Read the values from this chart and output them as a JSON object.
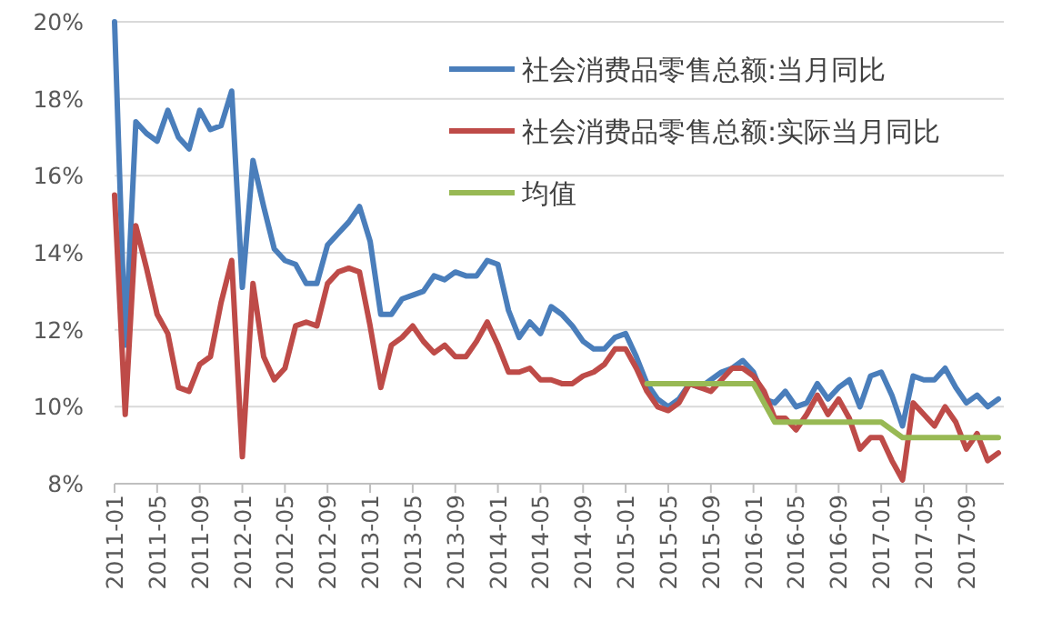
{
  "chart_data": {
    "type": "line",
    "categories": [
      "2011-01",
      null,
      null,
      null,
      "2011-05",
      null,
      null,
      null,
      "2011-09",
      null,
      null,
      null,
      "2012-01",
      null,
      null,
      null,
      "2012-05",
      null,
      null,
      null,
      "2012-09",
      null,
      null,
      null,
      "2013-01",
      null,
      null,
      null,
      "2013-05",
      null,
      null,
      null,
      "2013-09",
      null,
      null,
      null,
      "2014-01",
      null,
      null,
      null,
      "2014-05",
      null,
      null,
      null,
      "2014-09",
      null,
      null,
      null,
      "2015-01",
      null,
      null,
      null,
      "2015-05",
      null,
      null,
      null,
      "2015-09",
      null,
      null,
      null,
      "2016-01",
      null,
      null,
      null,
      "2016-05",
      null,
      null,
      null,
      "2016-09",
      null,
      null,
      null,
      "2017-01",
      null,
      null,
      null,
      "2017-05",
      null,
      null,
      null,
      "2017-09",
      null,
      null,
      null
    ],
    "series": [
      {
        "name": "社会消费品零售总额:当月同比",
        "color": "#4a7ebb",
        "values": [
          20.0,
          11.6,
          17.4,
          17.1,
          16.9,
          17.7,
          17.0,
          16.7,
          17.7,
          17.2,
          17.3,
          18.2,
          13.1,
          16.4,
          15.2,
          14.1,
          13.8,
          13.7,
          13.2,
          13.2,
          14.2,
          14.5,
          14.8,
          15.2,
          14.3,
          12.4,
          12.4,
          12.8,
          12.9,
          13.0,
          13.4,
          13.3,
          13.5,
          13.4,
          13.4,
          13.8,
          13.7,
          12.5,
          11.8,
          12.2,
          11.9,
          12.6,
          12.4,
          12.1,
          11.7,
          11.5,
          11.5,
          11.8,
          11.9,
          11.3,
          10.6,
          10.2,
          10.0,
          10.2,
          10.6,
          10.5,
          10.7,
          10.9,
          11.0,
          11.2,
          10.9,
          10.2,
          10.1,
          10.4,
          10.0,
          10.1,
          10.6,
          10.2,
          10.5,
          10.7,
          10.0,
          10.8,
          10.9,
          10.3,
          9.5,
          10.8,
          10.7,
          10.7,
          11.0,
          10.5,
          10.1,
          10.3,
          10.0,
          10.2
        ]
      },
      {
        "name": "社会消费品零售总额:实际当月同比",
        "color": "#be4b48",
        "values": [
          15.5,
          9.8,
          14.7,
          13.6,
          12.4,
          11.9,
          10.5,
          10.4,
          11.1,
          11.3,
          12.7,
          13.8,
          8.7,
          13.2,
          11.3,
          10.7,
          11.0,
          12.1,
          12.2,
          12.1,
          13.2,
          13.5,
          13.6,
          13.5,
          12.1,
          10.5,
          11.6,
          11.8,
          12.1,
          11.7,
          11.4,
          11.6,
          11.3,
          11.3,
          11.7,
          12.2,
          11.6,
          10.9,
          10.9,
          11.0,
          10.7,
          10.7,
          10.6,
          10.6,
          10.8,
          10.9,
          11.1,
          11.5,
          11.5,
          11.0,
          10.4,
          10.0,
          9.9,
          10.1,
          10.6,
          10.5,
          10.4,
          10.7,
          11.0,
          11.0,
          10.8,
          10.4,
          9.7,
          9.7,
          9.4,
          9.8,
          10.3,
          9.8,
          10.2,
          9.7,
          8.9,
          9.2,
          9.2,
          8.6,
          8.1,
          10.1,
          9.8,
          9.5,
          10.0,
          9.6,
          8.9,
          9.3,
          8.6,
          8.8
        ]
      },
      {
        "name": "均值",
        "color": "#98b954",
        "values": [
          null,
          null,
          null,
          null,
          null,
          null,
          null,
          null,
          null,
          null,
          null,
          null,
          null,
          null,
          null,
          null,
          null,
          null,
          null,
          null,
          null,
          null,
          null,
          null,
          null,
          null,
          null,
          null,
          null,
          null,
          null,
          null,
          null,
          null,
          null,
          null,
          null,
          null,
          null,
          null,
          null,
          null,
          null,
          null,
          null,
          null,
          null,
          null,
          null,
          null,
          10.6,
          10.6,
          10.6,
          10.6,
          10.6,
          10.6,
          10.6,
          10.6,
          10.6,
          10.6,
          10.6,
          10.1,
          9.6,
          9.6,
          9.6,
          9.6,
          9.6,
          9.6,
          9.6,
          9.6,
          9.6,
          9.6,
          9.6,
          9.4,
          9.2,
          9.2,
          9.2,
          9.2,
          9.2,
          9.2,
          9.2,
          9.2,
          9.2,
          9.2
        ]
      }
    ],
    "ylim": [
      8,
      20
    ],
    "yticks": [
      {
        "value": 8,
        "label": "8%"
      },
      {
        "value": 10,
        "label": "10%"
      },
      {
        "value": 12,
        "label": "12%"
      },
      {
        "value": 14,
        "label": "14%"
      },
      {
        "value": 16,
        "label": "16%"
      },
      {
        "value": 18,
        "label": "18%"
      },
      {
        "value": 20,
        "label": "20%"
      }
    ],
    "grid": "y",
    "legend": "top right"
  }
}
